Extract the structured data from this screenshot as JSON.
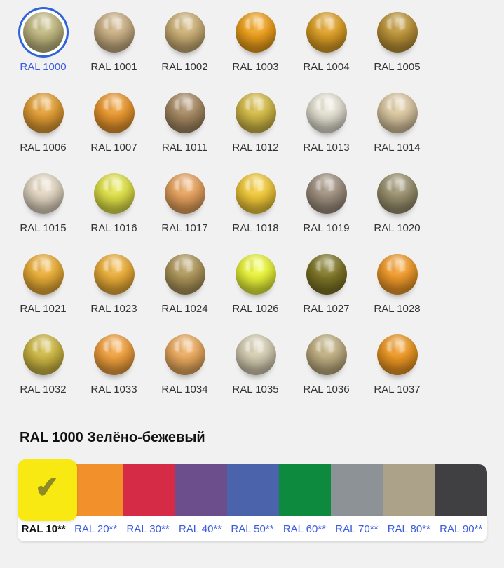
{
  "page": {
    "background": "#f1f1f2"
  },
  "sphere_grid": {
    "items": [
      {
        "label": "RAL 1000",
        "color": "#c6bd84",
        "selected": true
      },
      {
        "label": "RAL 1001",
        "color": "#cdb286"
      },
      {
        "label": "RAL 1002",
        "color": "#cfb277"
      },
      {
        "label": "RAL 1003",
        "color": "#f3a41d"
      },
      {
        "label": "RAL 1004",
        "color": "#e2a327"
      },
      {
        "label": "RAL 1005",
        "color": "#c09739"
      },
      {
        "label": "RAL 1006",
        "color": "#e7a136"
      },
      {
        "label": "RAL 1007",
        "color": "#ee9a2f"
      },
      {
        "label": "RAL 1011",
        "color": "#a98b64"
      },
      {
        "label": "RAL 1012",
        "color": "#d8be49"
      },
      {
        "label": "RAL 1013",
        "color": "#eae6d8"
      },
      {
        "label": "RAL 1014",
        "color": "#dfcba4"
      },
      {
        "label": "RAL 1015",
        "color": "#e7dbc6"
      },
      {
        "label": "RAL 1016",
        "color": "#e4e64a"
      },
      {
        "label": "RAL 1017",
        "color": "#eaa55f"
      },
      {
        "label": "RAL 1018",
        "color": "#f6cd3b"
      },
      {
        "label": "RAL 1019",
        "color": "#a29281"
      },
      {
        "label": "RAL 1020",
        "color": "#9c9370"
      },
      {
        "label": "RAL 1021",
        "color": "#efb138"
      },
      {
        "label": "RAL 1023",
        "color": "#f0b13a"
      },
      {
        "label": "RAL 1024",
        "color": "#b1995c"
      },
      {
        "label": "RAL 1026",
        "color": "#eef93b"
      },
      {
        "label": "RAL 1027",
        "color": "#817827"
      },
      {
        "label": "RAL 1028",
        "color": "#f59d2b"
      },
      {
        "label": "RAL 1032",
        "color": "#d1bb45"
      },
      {
        "label": "RAL 1033",
        "color": "#f5a33f"
      },
      {
        "label": "RAL 1034",
        "color": "#efad60"
      },
      {
        "label": "RAL 1035",
        "color": "#d9d1b6"
      },
      {
        "label": "RAL 1036",
        "color": "#c3b183"
      },
      {
        "label": "RAL 1037",
        "color": "#f19a24"
      }
    ]
  },
  "detail": {
    "title": "RAL 1000 Зелёно-бежевый"
  },
  "category_bar": {
    "check_icon": "✔",
    "items": [
      {
        "label": "RAL 10**",
        "color": "#f7e911",
        "selected": true
      },
      {
        "label": "RAL 20**",
        "color": "#f2912c"
      },
      {
        "label": "RAL 30**",
        "color": "#d52b47"
      },
      {
        "label": "RAL 40**",
        "color": "#6c4e8d"
      },
      {
        "label": "RAL 50**",
        "color": "#4a63ab"
      },
      {
        "label": "RAL 60**",
        "color": "#0e8a3f"
      },
      {
        "label": "RAL 70**",
        "color": "#8d9297"
      },
      {
        "label": "RAL 80**",
        "color": "#aca189"
      },
      {
        "label": "RAL 90**",
        "color": "#403f41"
      }
    ]
  },
  "theme": {
    "link_color": "#3a5be0",
    "selection_ring": "#2f63da",
    "check_color": "#8f8a24",
    "label_color": "#333333",
    "title_color": "#111111"
  }
}
